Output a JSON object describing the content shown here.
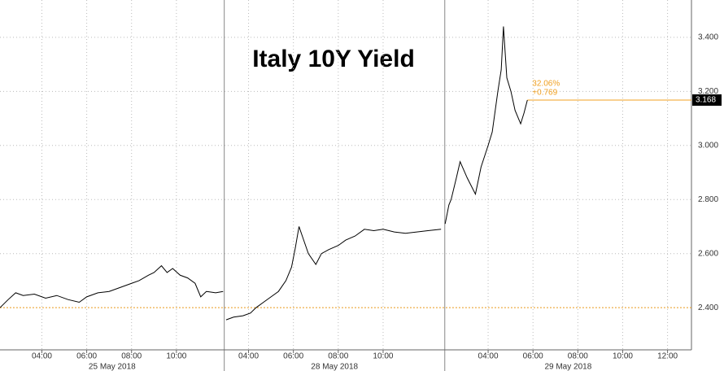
{
  "chart_data": {
    "type": "line",
    "title": "Italy 10Y Yield",
    "color": "#000000",
    "ylim": [
      2.244,
      3.538
    ],
    "yticks": [
      {
        "value": 2.4,
        "label": "2.400"
      },
      {
        "value": 2.6,
        "label": "2.600"
      },
      {
        "value": 2.8,
        "label": "2.800"
      },
      {
        "value": 3.0,
        "label": "3.000"
      },
      {
        "value": 3.2,
        "label": "3.200"
      },
      {
        "value": 3.4,
        "label": "3.400"
      }
    ],
    "grid": true,
    "sessions": [
      {
        "label": "25 May 2018",
        "xlim": [
          "2018-05-25T02:08",
          "2018-05-25T12:08"
        ],
        "xticks": [
          {
            "value": "2018-05-25T04:00",
            "label": "04:00"
          },
          {
            "value": "2018-05-25T06:00",
            "label": "06:00"
          },
          {
            "value": "2018-05-25T08:00",
            "label": "08:00"
          },
          {
            "value": "2018-05-25T10:00",
            "label": "10:00"
          }
        ]
      },
      {
        "label": "28 May 2018",
        "xlim": [
          "2018-05-28T02:55",
          "2018-05-28T12:45"
        ],
        "xticks": [
          {
            "value": "2018-05-28T04:00",
            "label": "04:00"
          },
          {
            "value": "2018-05-28T06:00",
            "label": "06:00"
          },
          {
            "value": "2018-05-28T08:00",
            "label": "08:00"
          },
          {
            "value": "2018-05-28T10:00",
            "label": "10:00"
          }
        ]
      },
      {
        "label": "29 May 2018",
        "xlim": [
          "2018-05-29T02:04",
          "2018-05-29T13:04"
        ],
        "xticks": [
          {
            "value": "2018-05-29T04:00",
            "label": "04:00"
          },
          {
            "value": "2018-05-29T06:00",
            "label": "06:00"
          },
          {
            "value": "2018-05-29T08:00",
            "label": "08:00"
          },
          {
            "value": "2018-05-29T10:00",
            "label": "10:00"
          },
          {
            "value": "2018-05-29T12:00",
            "label": "12:00"
          }
        ]
      }
    ],
    "x": [
      "2018-05-25T02:08",
      "2018-05-25T02:30",
      "2018-05-25T02:50",
      "2018-05-25T03:10",
      "2018-05-25T03:40",
      "2018-05-25T04:10",
      "2018-05-25T04:40",
      "2018-05-25T05:10",
      "2018-05-25T05:40",
      "2018-05-25T06:00",
      "2018-05-25T06:30",
      "2018-05-25T07:00",
      "2018-05-25T07:30",
      "2018-05-25T08:00",
      "2018-05-25T08:20",
      "2018-05-25T08:45",
      "2018-05-25T09:00",
      "2018-05-25T09:20",
      "2018-05-25T09:35",
      "2018-05-25T09:50",
      "2018-05-25T10:10",
      "2018-05-25T10:30",
      "2018-05-25T10:50",
      "2018-05-25T11:05",
      "2018-05-25T11:20",
      "2018-05-25T11:45",
      "2018-05-25T12:05",
      "2018-05-25T12:08",
      "2018-05-28T03:00",
      "2018-05-28T03:20",
      "2018-05-28T03:45",
      "2018-05-28T04:05",
      "2018-05-28T04:20",
      "2018-05-28T04:40",
      "2018-05-28T05:00",
      "2018-05-28T05:20",
      "2018-05-28T05:40",
      "2018-05-28T05:55",
      "2018-05-28T06:05",
      "2018-05-28T06:15",
      "2018-05-28T06:25",
      "2018-05-28T06:40",
      "2018-05-28T07:00",
      "2018-05-28T07:15",
      "2018-05-28T07:35",
      "2018-05-28T08:00",
      "2018-05-28T08:20",
      "2018-05-28T08:45",
      "2018-05-28T09:10",
      "2018-05-28T09:35",
      "2018-05-28T10:00",
      "2018-05-28T10:30",
      "2018-05-28T11:00",
      "2018-05-28T11:30",
      "2018-05-28T12:00",
      "2018-05-28T12:35",
      "2018-05-28T12:45",
      "2018-05-29T02:05",
      "2018-05-29T02:15",
      "2018-05-29T02:21",
      "2018-05-29T02:35",
      "2018-05-29T02:45",
      "2018-05-29T03:04",
      "2018-05-29T03:26",
      "2018-05-29T03:41",
      "2018-05-29T04:00",
      "2018-05-29T04:11",
      "2018-05-29T04:26",
      "2018-05-29T04:35",
      "2018-05-29T04:41",
      "2018-05-29T04:50",
      "2018-05-29T05:01",
      "2018-05-29T05:12",
      "2018-05-29T05:27",
      "2018-05-29T05:36",
      "2018-05-29T05:45"
    ],
    "values": [
      2.4,
      2.43,
      2.455,
      2.445,
      2.45,
      2.435,
      2.445,
      2.43,
      2.42,
      2.44,
      2.455,
      2.46,
      2.475,
      2.49,
      2.5,
      2.52,
      2.53,
      2.555,
      2.53,
      2.545,
      2.52,
      2.51,
      2.49,
      2.44,
      2.46,
      2.455,
      2.46,
      null,
      2.355,
      2.365,
      2.37,
      2.38,
      2.4,
      2.42,
      2.44,
      2.46,
      2.5,
      2.55,
      2.62,
      2.7,
      2.66,
      2.6,
      2.56,
      2.6,
      2.615,
      2.63,
      2.65,
      2.665,
      2.69,
      2.685,
      2.69,
      2.68,
      2.675,
      2.68,
      2.685,
      2.69,
      null,
      2.71,
      2.78,
      2.8,
      2.88,
      2.94,
      2.88,
      2.82,
      2.92,
      3.0,
      3.05,
      3.2,
      3.28,
      3.44,
      3.25,
      3.2,
      3.13,
      3.08,
      3.12,
      3.168
    ],
    "baseline": 2.4,
    "last_value": 3.168,
    "change_pct": {
      "value": 32.06,
      "label": "32.06%"
    },
    "change": {
      "value": 0.769,
      "label": "+0.769"
    },
    "ref_color": "#f0a020"
  }
}
